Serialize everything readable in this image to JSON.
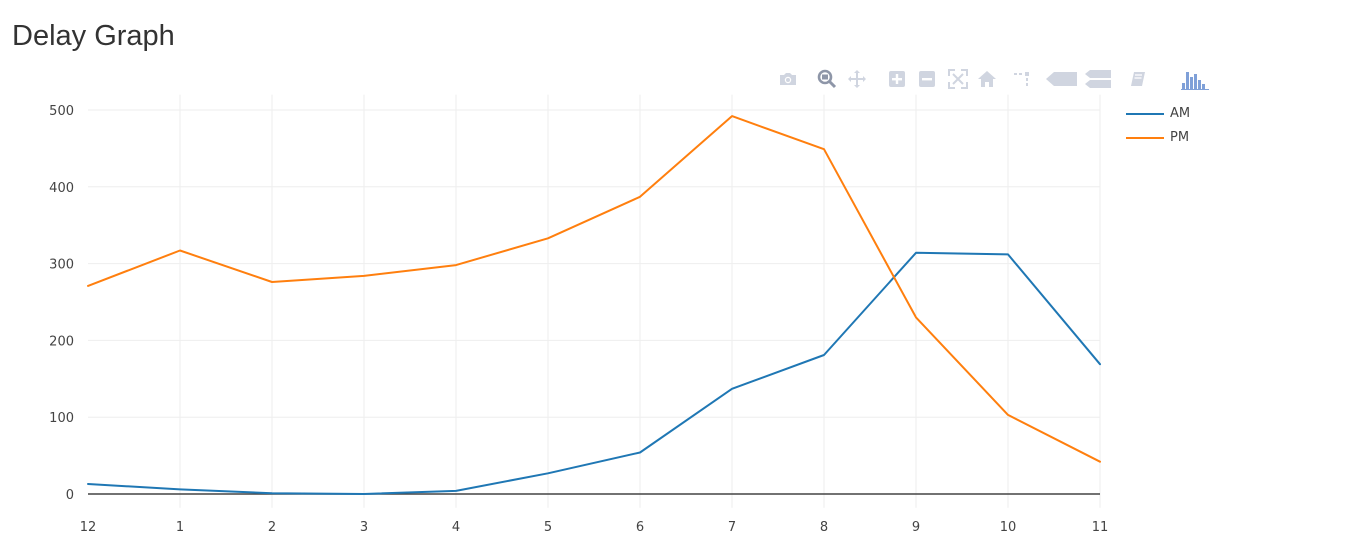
{
  "page": {
    "title": "Delay Graph"
  },
  "modebar": {
    "buttons": [
      {
        "name": "camera-icon",
        "title": "Download plot as a png"
      },
      {
        "name": "zoom-icon",
        "title": "Zoom"
      },
      {
        "name": "pan-icon",
        "title": "Pan"
      },
      {
        "name": "zoom-in-icon",
        "title": "Zoom in"
      },
      {
        "name": "zoom-out-icon",
        "title": "Zoom out"
      },
      {
        "name": "autoscale-icon",
        "title": "Autoscale"
      },
      {
        "name": "home-icon",
        "title": "Reset axes"
      },
      {
        "name": "spikelines-icon",
        "title": "Toggle Spike Lines"
      },
      {
        "name": "hover-closest-icon",
        "title": "Show closest data on hover"
      },
      {
        "name": "hover-compare-icon",
        "title": "Compare data on hover"
      },
      {
        "name": "edit-chart-icon",
        "title": "Edit in Chart Studio"
      },
      {
        "name": "plotly-logo-icon",
        "title": "Produced with Plotly"
      }
    ]
  },
  "colors": {
    "am": "#1f77b4",
    "pm": "#ff7f0e",
    "grid": "#eeeeee",
    "zeroline": "#444444",
    "modebar_icon": "#d0d5e0",
    "plotly_logo": "#7fa0d8"
  },
  "chart_data": {
    "type": "line",
    "title": "Delay Graph",
    "xlabel": "",
    "ylabel": "",
    "categories": [
      "12",
      "1",
      "2",
      "3",
      "4",
      "5",
      "6",
      "7",
      "8",
      "9",
      "10",
      "11"
    ],
    "series": [
      {
        "name": "AM",
        "color": "#1f77b4",
        "values": [
          13,
          6,
          1,
          0,
          4,
          27,
          54,
          137,
          181,
          314,
          312,
          169
        ]
      },
      {
        "name": "PM",
        "color": "#ff7f0e",
        "values": [
          271,
          317,
          276,
          284,
          298,
          333,
          387,
          492,
          449,
          230,
          103,
          42
        ]
      }
    ],
    "yticks": [
      0,
      100,
      200,
      300,
      400,
      500
    ],
    "ylim": [
      -18,
      520
    ],
    "grid": true,
    "legend_position": "top-right"
  }
}
